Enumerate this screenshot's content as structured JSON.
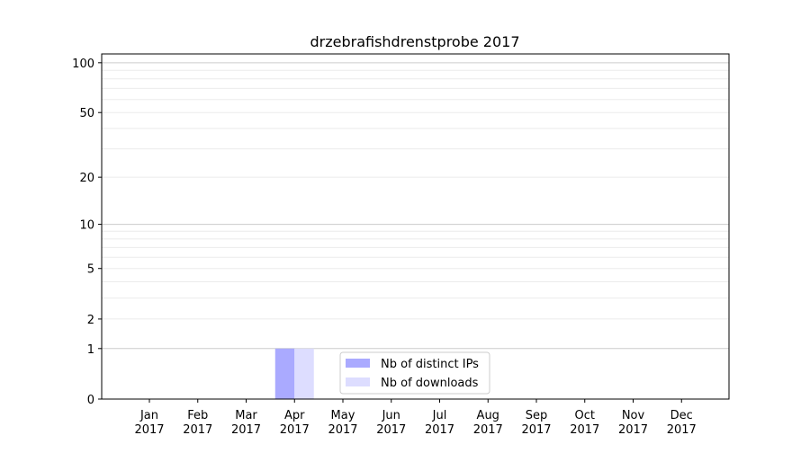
{
  "chart_data": {
    "type": "bar",
    "title": "drzebrafishdrenstprobe 2017",
    "xlabel": "",
    "ylabel": "",
    "yscale": "log(1+y)",
    "ylim": [
      0,
      113
    ],
    "yticks": [
      0,
      1,
      2,
      5,
      10,
      20,
      50,
      100
    ],
    "grid": true,
    "legend_placement": "lower-center",
    "categories": [
      "Jan\n2017",
      "Feb\n2017",
      "Mar\n2017",
      "Apr\n2017",
      "May\n2017",
      "Jun\n2017",
      "Jul\n2017",
      "Aug\n2017",
      "Sep\n2017",
      "Oct\n2017",
      "Nov\n2017",
      "Dec\n2017"
    ],
    "series": [
      {
        "name": "Nb of distinct IPs",
        "color": "#aaaaff",
        "values": [
          0,
          0,
          0,
          1,
          0,
          0,
          0,
          0,
          0,
          0,
          0,
          0
        ]
      },
      {
        "name": "Nb of downloads",
        "color": "#ddddff",
        "values": [
          0,
          0,
          0,
          1,
          0,
          0,
          0,
          0,
          0,
          0,
          0,
          0
        ]
      }
    ]
  }
}
